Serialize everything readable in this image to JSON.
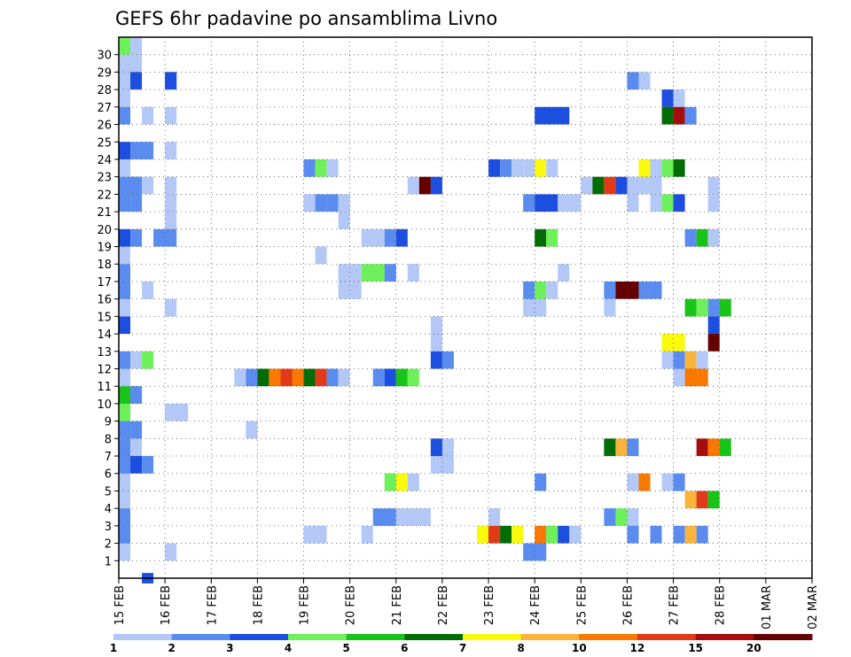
{
  "chart_data": {
    "type": "heatmap",
    "title": "GEFS 6hr padavine po ansamblima Livno",
    "x_ticks": [
      "15 FEB",
      "16 FEB",
      "17 FEB",
      "18 FEB",
      "19 FEB",
      "20 FEB",
      "21 FEB",
      "22 FEB",
      "23 FEB",
      "24 FEB",
      "25 FEB",
      "26 FEB",
      "27 FEB",
      "28 FEB",
      "01 MAR",
      "02 MAR"
    ],
    "y_ticks": [
      "1",
      "2",
      "3",
      "4",
      "5",
      "6",
      "7",
      "8",
      "9",
      "10",
      "11",
      "12",
      "13",
      "14",
      "15",
      "16",
      "17",
      "18",
      "19",
      "20",
      "21",
      "22",
      "23",
      "24",
      "25",
      "26",
      "27",
      "28",
      "29",
      "30"
    ],
    "colorbar": {
      "labels": [
        "1",
        "2",
        "3",
        "4",
        "5",
        "6",
        "7",
        "8",
        "10",
        "12",
        "15",
        "20"
      ],
      "colors": [
        "#b4c8f8",
        "#5a8cf0",
        "#1c4ee0",
        "#6ef05a",
        "#18c418",
        "#046c04",
        "#fafa0c",
        "#fab43c",
        "#f87800",
        "#e03a18",
        "#a40e0e",
        "#640000"
      ]
    },
    "grid": "dotted",
    "cells": [
      {
        "e": 1,
        "t": 0,
        "d": 1,
        "c": 0
      },
      {
        "e": 2,
        "t": 0,
        "d": 1,
        "c": 1
      },
      {
        "e": 3,
        "t": 0,
        "d": 1,
        "c": 1
      },
      {
        "e": 4,
        "t": 0,
        "d": 1,
        "c": 0
      },
      {
        "e": 5,
        "t": 0,
        "d": 1,
        "c": 0
      },
      {
        "e": 6,
        "t": 0,
        "d": 1,
        "c": 1
      },
      {
        "e": 7,
        "t": 0,
        "d": 1,
        "c": 1
      },
      {
        "e": 8,
        "t": 0,
        "d": 1,
        "c": 1
      },
      {
        "e": 9,
        "t": 0,
        "d": 1,
        "c": 3
      },
      {
        "e": 10,
        "t": 0,
        "d": 2,
        "c": 4
      },
      {
        "e": 11,
        "t": 0,
        "d": 1,
        "c": 0
      },
      {
        "e": 12,
        "t": 0,
        "d": 1,
        "c": 1
      },
      {
        "e": 14,
        "t": 0,
        "d": 1,
        "c": 2
      },
      {
        "e": 15,
        "t": 0,
        "d": 1,
        "c": 0
      },
      {
        "e": 16,
        "t": 0,
        "d": 1,
        "c": 1
      },
      {
        "e": 17,
        "t": 0,
        "d": 1,
        "c": 1
      },
      {
        "e": 18,
        "t": 0,
        "d": 1,
        "c": 0
      },
      {
        "e": 19,
        "t": 0,
        "d": 1,
        "c": 2
      },
      {
        "e": 21,
        "t": 0,
        "d": 1,
        "c": 1
      },
      {
        "e": 22,
        "t": 0,
        "d": 2,
        "c": 1
      },
      {
        "e": 23,
        "t": 0,
        "d": 1,
        "c": 0
      },
      {
        "e": 24,
        "t": 0,
        "d": 1,
        "c": 2
      },
      {
        "e": 26,
        "t": 0,
        "d": 1,
        "c": 1
      },
      {
        "e": 27,
        "t": 0,
        "d": 1,
        "c": 0
      },
      {
        "e": 28,
        "t": 0,
        "d": 1,
        "c": 0
      },
      {
        "e": 29,
        "t": 0,
        "d": 2,
        "c": 0
      },
      {
        "e": 30,
        "t": 0,
        "d": 1,
        "c": 3
      },
      {
        "e": 6,
        "t": 1,
        "d": 1,
        "c": 2
      },
      {
        "e": 7,
        "t": 1,
        "d": 1,
        "c": 0
      },
      {
        "e": 8,
        "t": 1,
        "d": 1,
        "c": 1
      },
      {
        "e": 10,
        "t": 1,
        "d": 1,
        "c": 1
      },
      {
        "e": 12,
        "t": 1,
        "d": 1,
        "c": 0
      },
      {
        "e": 19,
        "t": 1,
        "d": 1,
        "c": 1
      },
      {
        "e": 21,
        "t": 1,
        "d": 1,
        "c": 1
      },
      {
        "e": 22,
        "t": 1,
        "d": 1,
        "c": 1
      },
      {
        "e": 24,
        "t": 1,
        "d": 2,
        "c": 1
      },
      {
        "e": 28,
        "t": 1,
        "d": 1,
        "c": 2
      },
      {
        "e": 30,
        "t": 1,
        "d": 1,
        "c": 0
      },
      {
        "e": 6,
        "t": 2,
        "d": 1,
        "c": 1
      },
      {
        "e": 12,
        "t": 2,
        "d": 1,
        "c": 3
      },
      {
        "e": 16,
        "t": 2,
        "d": 1,
        "c": 0
      },
      {
        "e": 22,
        "t": 2,
        "d": 1,
        "c": 0
      },
      {
        "e": 26,
        "t": 2,
        "d": 1,
        "c": 0
      },
      {
        "e": -1,
        "t": 2,
        "d": 1,
        "c": 2
      },
      {
        "e": 1,
        "t": 4,
        "d": 1,
        "c": 0
      },
      {
        "e": 15,
        "t": 4,
        "d": 1,
        "c": 0
      },
      {
        "e": 20,
        "t": 4,
        "d": 1,
        "c": 0
      },
      {
        "e": 21,
        "t": 4,
        "d": 1,
        "c": 0
      },
      {
        "e": 22,
        "t": 4,
        "d": 1,
        "c": 0
      },
      {
        "e": 24,
        "t": 4,
        "d": 1,
        "c": 0
      },
      {
        "e": 26,
        "t": 4,
        "d": 1,
        "c": 0
      },
      {
        "e": 28,
        "t": 4,
        "d": 1,
        "c": 1
      },
      {
        "e": 19,
        "t": 3,
        "d": 2,
        "c": 1
      },
      {
        "e": 9,
        "t": 4,
        "d": 2,
        "c": 0
      },
      {
        "e": 28,
        "t": 4,
        "d": 1,
        "c": 2
      },
      {
        "e": 8,
        "t": 11,
        "d": 1,
        "c": 0
      },
      {
        "e": 11,
        "t": 10,
        "d": 1,
        "c": 0
      },
      {
        "e": 11,
        "t": 11,
        "d": 1,
        "c": 1
      },
      {
        "e": 11,
        "t": 12,
        "d": 1,
        "c": 5
      },
      {
        "e": 11,
        "t": 13,
        "d": 1,
        "c": 8
      },
      {
        "e": 11,
        "t": 14,
        "d": 1,
        "c": 9
      },
      {
        "e": 11,
        "t": 15,
        "d": 1,
        "c": 8
      },
      {
        "e": 11,
        "t": 16,
        "d": 1,
        "c": 5
      },
      {
        "e": 11,
        "t": 17,
        "d": 1,
        "c": 9
      },
      {
        "e": 11,
        "t": 18,
        "d": 1,
        "c": 1
      },
      {
        "e": 11,
        "t": 19,
        "d": 1,
        "c": 0
      },
      {
        "e": 2,
        "t": 16,
        "d": 2,
        "c": 0
      },
      {
        "e": 21,
        "t": 16,
        "d": 1,
        "c": 0
      },
      {
        "e": 21,
        "t": 17,
        "d": 1,
        "c": 1
      },
      {
        "e": 21,
        "t": 18,
        "d": 1,
        "c": 1
      },
      {
        "e": 21,
        "t": 19,
        "d": 1,
        "c": 0
      },
      {
        "e": 23,
        "t": 16,
        "d": 1,
        "c": 1
      },
      {
        "e": 23,
        "t": 17,
        "d": 1,
        "c": 3
      },
      {
        "e": 23,
        "t": 18,
        "d": 1,
        "c": 0
      },
      {
        "e": 18,
        "t": 17,
        "d": 1,
        "c": 0
      },
      {
        "e": 20,
        "t": 19,
        "d": 1,
        "c": 0
      },
      {
        "e": 17,
        "t": 19,
        "d": 1,
        "c": 0
      },
      {
        "e": 17,
        "t": 20,
        "d": 1,
        "c": 0
      },
      {
        "e": 17,
        "t": 21,
        "d": 2,
        "c": 3
      },
      {
        "e": 17,
        "t": 23,
        "d": 1,
        "c": 1
      },
      {
        "e": 16,
        "t": 19,
        "d": 1,
        "c": 0
      },
      {
        "e": 16,
        "t": 20,
        "d": 1,
        "c": 0
      },
      {
        "e": 2,
        "t": 21,
        "d": 1,
        "c": 0
      },
      {
        "e": 19,
        "t": 21,
        "d": 2,
        "c": 0
      },
      {
        "e": 19,
        "t": 23,
        "d": 1,
        "c": 1
      },
      {
        "e": 19,
        "t": 24,
        "d": 1,
        "c": 2
      },
      {
        "e": 11,
        "t": 22,
        "d": 1,
        "c": 1
      },
      {
        "e": 11,
        "t": 23,
        "d": 1,
        "c": 2
      },
      {
        "e": 11,
        "t": 24,
        "d": 1,
        "c": 4
      },
      {
        "e": 11,
        "t": 25,
        "d": 1,
        "c": 3
      },
      {
        "e": 5,
        "t": 23,
        "d": 1,
        "c": 3
      },
      {
        "e": 5,
        "t": 24,
        "d": 1,
        "c": 6
      },
      {
        "e": 5,
        "t": 25,
        "d": 1,
        "c": 0
      },
      {
        "e": 3,
        "t": 22,
        "d": 2,
        "c": 1
      },
      {
        "e": 3,
        "t": 24,
        "d": 3,
        "c": 0
      },
      {
        "e": 17,
        "t": 25,
        "d": 1,
        "c": 0
      },
      {
        "e": 22,
        "t": 25,
        "d": 1,
        "c": 0
      },
      {
        "e": 22,
        "t": 26,
        "d": 1,
        "c": 11
      },
      {
        "e": 22,
        "t": 27,
        "d": 1,
        "c": 2
      },
      {
        "e": 12,
        "t": 27,
        "d": 1,
        "c": 2
      },
      {
        "e": 12,
        "t": 28,
        "d": 1,
        "c": 1
      },
      {
        "e": 13,
        "t": 27,
        "d": 1,
        "c": 0
      },
      {
        "e": 14,
        "t": 27,
        "d": 1,
        "c": 0
      },
      {
        "e": 7,
        "t": 27,
        "d": 1,
        "c": 2
      },
      {
        "e": 7,
        "t": 28,
        "d": 1,
        "c": 0
      },
      {
        "e": 6,
        "t": 27,
        "d": 2,
        "c": 0
      },
      {
        "e": 2,
        "t": 31,
        "d": 1,
        "c": 6
      },
      {
        "e": 2,
        "t": 32,
        "d": 1,
        "c": 9
      },
      {
        "e": 2,
        "t": 33,
        "d": 1,
        "c": 5
      },
      {
        "e": 2,
        "t": 34,
        "d": 1,
        "c": 6
      },
      {
        "e": 3,
        "t": 32,
        "d": 1,
        "c": 0
      },
      {
        "e": 23,
        "t": 32,
        "d": 1,
        "c": 2
      },
      {
        "e": 23,
        "t": 33,
        "d": 1,
        "c": 1
      },
      {
        "e": 23,
        "t": 34,
        "d": 1,
        "c": 0
      },
      {
        "e": 1,
        "t": 35,
        "d": 2,
        "c": 1
      },
      {
        "e": 2,
        "t": 36,
        "d": 1,
        "c": 8
      },
      {
        "e": 2,
        "t": 37,
        "d": 1,
        "c": 3
      },
      {
        "e": 2,
        "t": 38,
        "d": 1,
        "c": 2
      },
      {
        "e": 2,
        "t": 39,
        "d": 1,
        "c": 0
      },
      {
        "e": 5,
        "t": 36,
        "d": 1,
        "c": 1
      },
      {
        "e": 15,
        "t": 35,
        "d": 2,
        "c": 0
      },
      {
        "e": 16,
        "t": 35,
        "d": 1,
        "c": 1
      },
      {
        "e": 16,
        "t": 36,
        "d": 1,
        "c": 3
      },
      {
        "e": 16,
        "t": 37,
        "d": 1,
        "c": 0
      },
      {
        "e": 17,
        "t": 38,
        "d": 1,
        "c": 0
      },
      {
        "e": 19,
        "t": 36,
        "d": 1,
        "c": 5
      },
      {
        "e": 19,
        "t": 37,
        "d": 1,
        "c": 3
      },
      {
        "e": 21,
        "t": 35,
        "d": 1,
        "c": 1
      },
      {
        "e": 21,
        "t": 36,
        "d": 2,
        "c": 2
      },
      {
        "e": 21,
        "t": 38,
        "d": 2,
        "c": 0
      },
      {
        "e": 23,
        "t": 35,
        "d": 1,
        "c": 0
      },
      {
        "e": 23,
        "t": 36,
        "d": 1,
        "c": 6
      },
      {
        "e": 23,
        "t": 37,
        "d": 1,
        "c": 0
      },
      {
        "e": 26,
        "t": 36,
        "d": 3,
        "c": 2
      },
      {
        "e": 22,
        "t": 40,
        "d": 1,
        "c": 0
      },
      {
        "e": 22,
        "t": 41,
        "d": 1,
        "c": 5
      },
      {
        "e": 22,
        "t": 42,
        "d": 1,
        "c": 9
      },
      {
        "e": 22,
        "t": 43,
        "d": 1,
        "c": 2
      },
      {
        "e": 22,
        "t": 44,
        "d": 2,
        "c": 0
      },
      {
        "e": 21,
        "t": 44,
        "d": 1,
        "c": 0
      },
      {
        "e": 7,
        "t": 42,
        "d": 1,
        "c": 5
      },
      {
        "e": 7,
        "t": 43,
        "d": 1,
        "c": 7
      },
      {
        "e": 7,
        "t": 44,
        "d": 1,
        "c": 1
      },
      {
        "e": 16,
        "t": 42,
        "d": 1,
        "c": 1
      },
      {
        "e": 16,
        "t": 43,
        "d": 2,
        "c": 11
      },
      {
        "e": 16,
        "t": 45,
        "d": 1,
        "c": 1
      },
      {
        "e": 16,
        "t": 46,
        "d": 1,
        "c": 1
      },
      {
        "e": 15,
        "t": 42,
        "d": 1,
        "c": 0
      },
      {
        "e": 3,
        "t": 42,
        "d": 1,
        "c": 1
      },
      {
        "e": 3,
        "t": 43,
        "d": 1,
        "c": 3
      },
      {
        "e": 3,
        "t": 44,
        "d": 1,
        "c": 0
      },
      {
        "e": 2,
        "t": 44,
        "d": 1,
        "c": 1
      },
      {
        "e": 2,
        "t": 46,
        "d": 1,
        "c": 1
      },
      {
        "e": 5,
        "t": 44,
        "d": 1,
        "c": 0
      },
      {
        "e": 5,
        "t": 45,
        "d": 1,
        "c": 8
      },
      {
        "e": 28,
        "t": 44,
        "d": 1,
        "c": 1
      },
      {
        "e": 28,
        "t": 45,
        "d": 1,
        "c": 0
      },
      {
        "e": 23,
        "t": 45,
        "d": 1,
        "c": 6
      },
      {
        "e": 23,
        "t": 46,
        "d": 1,
        "c": 0
      },
      {
        "e": 23,
        "t": 47,
        "d": 1,
        "c": 3
      },
      {
        "e": 23,
        "t": 48,
        "d": 1,
        "c": 5
      },
      {
        "e": 21,
        "t": 46,
        "d": 1,
        "c": 0
      },
      {
        "e": 21,
        "t": 47,
        "d": 1,
        "c": 3
      },
      {
        "e": 21,
        "t": 48,
        "d": 1,
        "c": 2
      },
      {
        "e": 22,
        "t": 46,
        "d": 1,
        "c": 0
      },
      {
        "e": 27,
        "t": 47,
        "d": 1,
        "c": 2
      },
      {
        "e": 27,
        "t": 48,
        "d": 1,
        "c": 0
      },
      {
        "e": 26,
        "t": 47,
        "d": 1,
        "c": 5
      },
      {
        "e": 26,
        "t": 48,
        "d": 1,
        "c": 10
      },
      {
        "e": 26,
        "t": 49,
        "d": 1,
        "c": 1
      },
      {
        "e": 13,
        "t": 47,
        "d": 2,
        "c": 6
      },
      {
        "e": 12,
        "t": 47,
        "d": 1,
        "c": 0
      },
      {
        "e": 12,
        "t": 48,
        "d": 1,
        "c": 1
      },
      {
        "e": 12,
        "t": 49,
        "d": 1,
        "c": 7
      },
      {
        "e": 12,
        "t": 50,
        "d": 1,
        "c": 0
      },
      {
        "e": 11,
        "t": 48,
        "d": 1,
        "c": 0
      },
      {
        "e": 11,
        "t": 49,
        "d": 2,
        "c": 8
      },
      {
        "e": 15,
        "t": 49,
        "d": 1,
        "c": 4
      },
      {
        "e": 15,
        "t": 50,
        "d": 1,
        "c": 3
      },
      {
        "e": 15,
        "t": 51,
        "d": 1,
        "c": 1
      },
      {
        "e": 14,
        "t": 51,
        "d": 1,
        "c": 2
      },
      {
        "e": 13,
        "t": 51,
        "d": 1,
        "c": 11
      },
      {
        "e": 15,
        "t": 52,
        "d": 1,
        "c": 4
      },
      {
        "e": 19,
        "t": 49,
        "d": 1,
        "c": 1
      },
      {
        "e": 19,
        "t": 50,
        "d": 1,
        "c": 4
      },
      {
        "e": 19,
        "t": 51,
        "d": 1,
        "c": 0
      },
      {
        "e": 7,
        "t": 50,
        "d": 1,
        "c": 10
      },
      {
        "e": 7,
        "t": 51,
        "d": 1,
        "c": 8
      },
      {
        "e": 7,
        "t": 52,
        "d": 1,
        "c": 4
      },
      {
        "e": 5,
        "t": 47,
        "d": 1,
        "c": 0
      },
      {
        "e": 5,
        "t": 48,
        "d": 1,
        "c": 1
      },
      {
        "e": 4,
        "t": 49,
        "d": 1,
        "c": 7
      },
      {
        "e": 4,
        "t": 50,
        "d": 1,
        "c": 9
      },
      {
        "e": 4,
        "t": 51,
        "d": 1,
        "c": 4
      },
      {
        "e": 2,
        "t": 48,
        "d": 1,
        "c": 1
      },
      {
        "e": 2,
        "t": 49,
        "d": 1,
        "c": 7
      },
      {
        "e": 2,
        "t": 50,
        "d": 1,
        "c": 1
      },
      {
        "e": 22,
        "t": 51,
        "d": 1,
        "c": 0
      },
      {
        "e": 21,
        "t": 51,
        "d": 1,
        "c": 0
      }
    ]
  }
}
